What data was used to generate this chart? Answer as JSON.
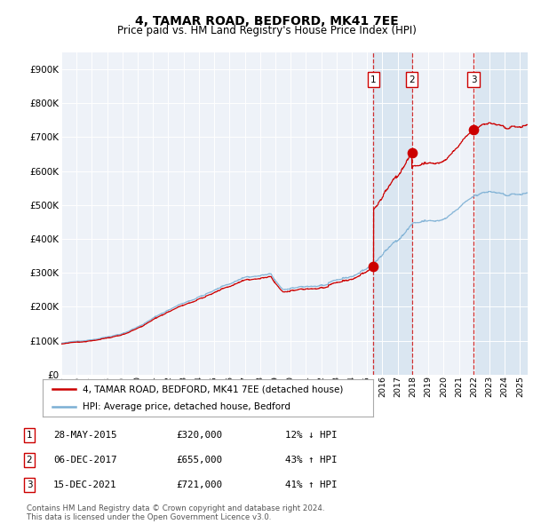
{
  "title": "4, TAMAR ROAD, BEDFORD, MK41 7EE",
  "subtitle": "Price paid vs. HM Land Registry's House Price Index (HPI)",
  "ylabel_ticks": [
    "£0",
    "£100K",
    "£200K",
    "£300K",
    "£400K",
    "£500K",
    "£600K",
    "£700K",
    "£800K",
    "£900K"
  ],
  "ytick_values": [
    0,
    100000,
    200000,
    300000,
    400000,
    500000,
    600000,
    700000,
    800000,
    900000
  ],
  "ylim": [
    0,
    950000
  ],
  "sale1_date": 2015.42,
  "sale1_price": 320000,
  "sale2_date": 2017.92,
  "sale2_price": 655000,
  "sale3_date": 2021.96,
  "sale3_price": 721000,
  "sale_color": "#cc0000",
  "hpi_color": "#7bafd4",
  "background_color": "#eef2f8",
  "shade_color": "#d5e3f0",
  "legend1": "4, TAMAR ROAD, BEDFORD, MK41 7EE (detached house)",
  "legend2": "HPI: Average price, detached house, Bedford",
  "table_rows": [
    [
      "1",
      "28-MAY-2015",
      "£320,000",
      "12% ↓ HPI"
    ],
    [
      "2",
      "06-DEC-2017",
      "£655,000",
      "43% ↑ HPI"
    ],
    [
      "3",
      "15-DEC-2021",
      "£721,000",
      "41% ↑ HPI"
    ]
  ],
  "footer": "Contains HM Land Registry data © Crown copyright and database right 2024.\nThis data is licensed under the Open Government Licence v3.0.",
  "xstart": 1995.0,
  "xend": 2025.5
}
